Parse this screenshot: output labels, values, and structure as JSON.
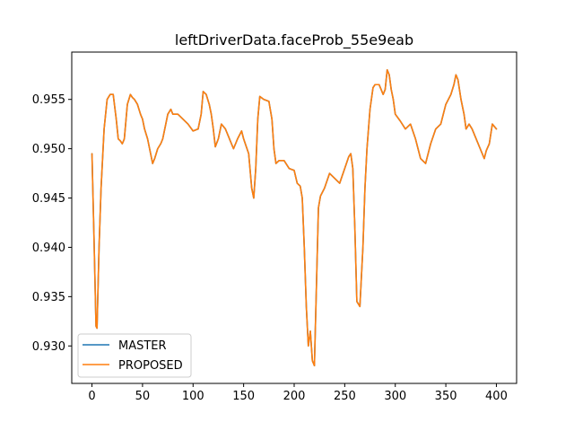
{
  "chart_data": {
    "type": "line",
    "title": "leftDriverData.faceProb_55e9eab",
    "xlabel": "",
    "ylabel": "",
    "xlim": [
      -20,
      420
    ],
    "ylim": [
      0.9262,
      0.9598
    ],
    "xticks": [
      0,
      50,
      100,
      150,
      200,
      250,
      300,
      350,
      400
    ],
    "xtick_labels": [
      "0",
      "50",
      "100",
      "150",
      "200",
      "250",
      "300",
      "350",
      "400"
    ],
    "yticks": [
      0.93,
      0.935,
      0.94,
      0.945,
      0.95,
      0.955
    ],
    "ytick_labels": [
      "0.930",
      "0.935",
      "0.940",
      "0.945",
      "0.950",
      "0.955"
    ],
    "grid": false,
    "legend_position": "lower-left",
    "x_anchor": [
      0,
      2,
      4,
      5,
      7,
      9,
      12,
      15,
      18,
      21,
      24,
      26,
      28,
      30,
      32,
      35,
      38,
      40,
      42,
      45,
      48,
      50,
      52,
      55,
      58,
      60,
      62,
      65,
      68,
      70,
      72,
      75,
      78,
      80,
      85,
      90,
      95,
      100,
      105,
      108,
      110,
      113,
      116,
      118,
      120,
      122,
      125,
      128,
      132,
      136,
      140,
      144,
      148,
      150,
      155,
      158,
      160,
      162,
      164,
      166,
      170,
      175,
      178,
      180,
      182,
      185,
      190,
      195,
      200,
      203,
      206,
      208,
      210,
      212,
      214,
      216,
      218,
      220,
      222,
      224,
      226,
      230,
      235,
      240,
      245,
      250,
      254,
      256,
      258,
      260,
      262,
      265,
      268,
      270,
      272,
      275,
      278,
      280,
      284,
      288,
      290,
      292,
      294,
      296,
      298,
      300,
      305,
      310,
      315,
      320,
      325,
      330,
      335,
      340,
      345,
      350,
      355,
      358,
      360,
      362,
      365,
      368,
      370,
      373,
      376,
      380,
      384,
      388,
      390,
      393,
      396,
      400
    ],
    "series": [
      {
        "name": "MASTER",
        "color": "#1f77b4",
        "values": [
          0.9495,
          0.941,
          0.932,
          0.9318,
          0.94,
          0.946,
          0.952,
          0.955,
          0.9555,
          0.9555,
          0.953,
          0.951,
          0.9508,
          0.9505,
          0.951,
          0.9545,
          0.9555,
          0.9552,
          0.955,
          0.9545,
          0.9535,
          0.953,
          0.952,
          0.951,
          0.9495,
          0.9485,
          0.949,
          0.95,
          0.9505,
          0.951,
          0.952,
          0.9535,
          0.954,
          0.9535,
          0.9535,
          0.953,
          0.9525,
          0.9518,
          0.952,
          0.9535,
          0.9558,
          0.9555,
          0.9545,
          0.9535,
          0.952,
          0.9502,
          0.951,
          0.9525,
          0.952,
          0.951,
          0.95,
          0.951,
          0.9518,
          0.951,
          0.9495,
          0.946,
          0.945,
          0.948,
          0.953,
          0.9553,
          0.955,
          0.9548,
          0.953,
          0.95,
          0.9485,
          0.9488,
          0.9488,
          0.948,
          0.9478,
          0.9465,
          0.9462,
          0.945,
          0.94,
          0.934,
          0.93,
          0.9315,
          0.9285,
          0.928,
          0.936,
          0.944,
          0.9452,
          0.946,
          0.9475,
          0.947,
          0.9465,
          0.948,
          0.9492,
          0.9495,
          0.948,
          0.942,
          0.9345,
          0.934,
          0.94,
          0.946,
          0.95,
          0.954,
          0.9562,
          0.9565,
          0.9565,
          0.9555,
          0.956,
          0.958,
          0.9575,
          0.956,
          0.955,
          0.9535,
          0.9528,
          0.952,
          0.9525,
          0.951,
          0.949,
          0.9485,
          0.9505,
          0.952,
          0.9525,
          0.9545,
          0.9555,
          0.9565,
          0.9575,
          0.957,
          0.955,
          0.9535,
          0.952,
          0.9525,
          0.952,
          0.951,
          0.95,
          0.949,
          0.9498,
          0.9505,
          0.9525,
          0.952
        ]
      },
      {
        "name": "PROPOSED",
        "color": "#ff7f0e",
        "values": [
          0.9495,
          0.941,
          0.932,
          0.9318,
          0.94,
          0.946,
          0.952,
          0.955,
          0.9555,
          0.9555,
          0.953,
          0.951,
          0.9508,
          0.9505,
          0.951,
          0.9545,
          0.9555,
          0.9552,
          0.955,
          0.9545,
          0.9535,
          0.953,
          0.952,
          0.951,
          0.9495,
          0.9485,
          0.949,
          0.95,
          0.9505,
          0.951,
          0.952,
          0.9535,
          0.954,
          0.9535,
          0.9535,
          0.953,
          0.9525,
          0.9518,
          0.952,
          0.9535,
          0.9558,
          0.9555,
          0.9545,
          0.9535,
          0.952,
          0.9502,
          0.951,
          0.9525,
          0.952,
          0.951,
          0.95,
          0.951,
          0.9518,
          0.951,
          0.9495,
          0.946,
          0.945,
          0.948,
          0.953,
          0.9553,
          0.955,
          0.9548,
          0.953,
          0.95,
          0.9485,
          0.9488,
          0.9488,
          0.948,
          0.9478,
          0.9465,
          0.9462,
          0.945,
          0.94,
          0.934,
          0.93,
          0.9315,
          0.9285,
          0.928,
          0.936,
          0.944,
          0.9452,
          0.946,
          0.9475,
          0.947,
          0.9465,
          0.948,
          0.9492,
          0.9495,
          0.948,
          0.942,
          0.9345,
          0.934,
          0.94,
          0.946,
          0.95,
          0.954,
          0.9562,
          0.9565,
          0.9565,
          0.9555,
          0.956,
          0.958,
          0.9575,
          0.956,
          0.955,
          0.9535,
          0.9528,
          0.952,
          0.9525,
          0.951,
          0.949,
          0.9485,
          0.9505,
          0.952,
          0.9525,
          0.9545,
          0.9555,
          0.9565,
          0.9575,
          0.957,
          0.955,
          0.9535,
          0.952,
          0.9525,
          0.952,
          0.951,
          0.95,
          0.949,
          0.9498,
          0.9505,
          0.9525,
          0.952
        ]
      }
    ]
  }
}
